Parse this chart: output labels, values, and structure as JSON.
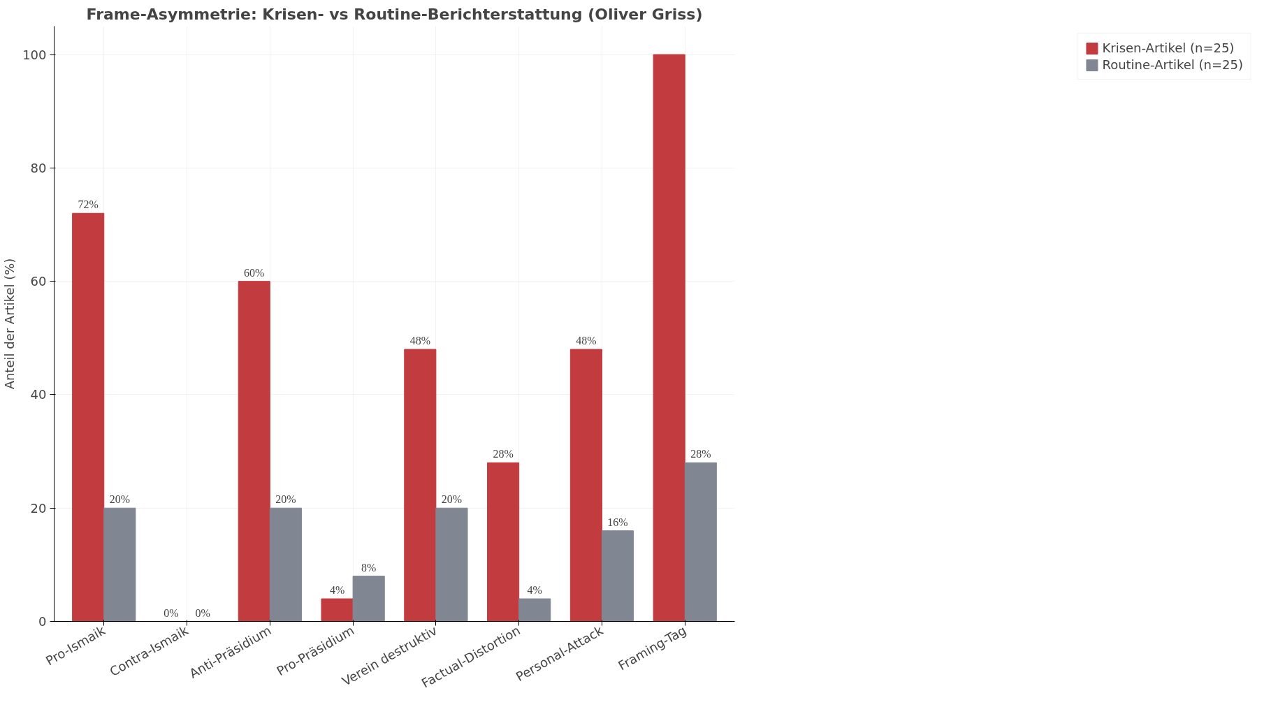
{
  "chart_data": {
    "type": "bar",
    "title": "Frame-Asymmetrie: Krisen- vs Routine-Berichterstattung (Oliver Griss)",
    "ylabel": "Anteil der Artikel (%)",
    "categories": [
      "Pro-Ismaik",
      "Contra-Ismaik",
      "Anti-Präsidium",
      "Pro-Präsidium",
      "Verein destruktiv",
      "Factual-Distortion",
      "Personal-Attack",
      "Framing-Tag"
    ],
    "series": [
      {
        "name": "Krisen-Artikel (n=25)",
        "color": "#c23b3e",
        "values": [
          72,
          0,
          60,
          4,
          48,
          28,
          48,
          100
        ],
        "value_labels": [
          "72%",
          "0%",
          "60%",
          "4%",
          "48%",
          "28%",
          "48%",
          null
        ]
      },
      {
        "name": "Routine-Artikel (n=25)",
        "color": "#808793",
        "values": [
          20,
          0,
          20,
          8,
          20,
          4,
          16,
          28
        ],
        "value_labels": [
          "20%",
          "0%",
          "20%",
          "8%",
          "20%",
          "4%",
          "16%",
          "28%"
        ]
      }
    ],
    "ylim": [
      0,
      105
    ],
    "yticks": [
      0,
      20,
      40,
      60,
      80,
      100
    ],
    "grid": true,
    "legend": "top right"
  }
}
